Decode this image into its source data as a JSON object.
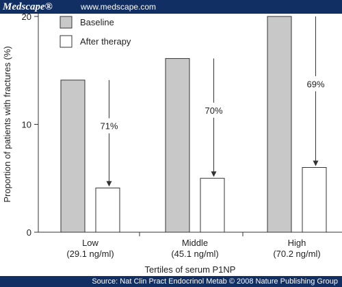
{
  "header": {
    "brand": "Medscape®",
    "site": "www.medscape.com"
  },
  "footer": {
    "credit": "Source: Nat Clin Pract Endocrinol Metab © 2008 Nature Publishing Group"
  },
  "chart_data": {
    "type": "bar",
    "xlabel": "Tertiles of serum P1NP",
    "ylabel": "Proportion of patients with fractures (%)",
    "ylim": [
      0,
      20
    ],
    "yticks": [
      0,
      10,
      20
    ],
    "categories": [
      {
        "name": "Low",
        "sub": "(29.1 ng/ml)"
      },
      {
        "name": "Middle",
        "sub": "(45.1 ng/ml)"
      },
      {
        "name": "High",
        "sub": "(70.2 ng/ml)"
      }
    ],
    "series": [
      {
        "name": "Baseline",
        "color": "#c8c8c8",
        "values": [
          14.1,
          16.1,
          20
        ]
      },
      {
        "name": "After therapy",
        "color": "#ffffff",
        "values": [
          4.1,
          5,
          6
        ]
      }
    ],
    "annotations": [
      "71%",
      "70%",
      "69%"
    ],
    "legend_position": "top-left",
    "grid": false
  }
}
